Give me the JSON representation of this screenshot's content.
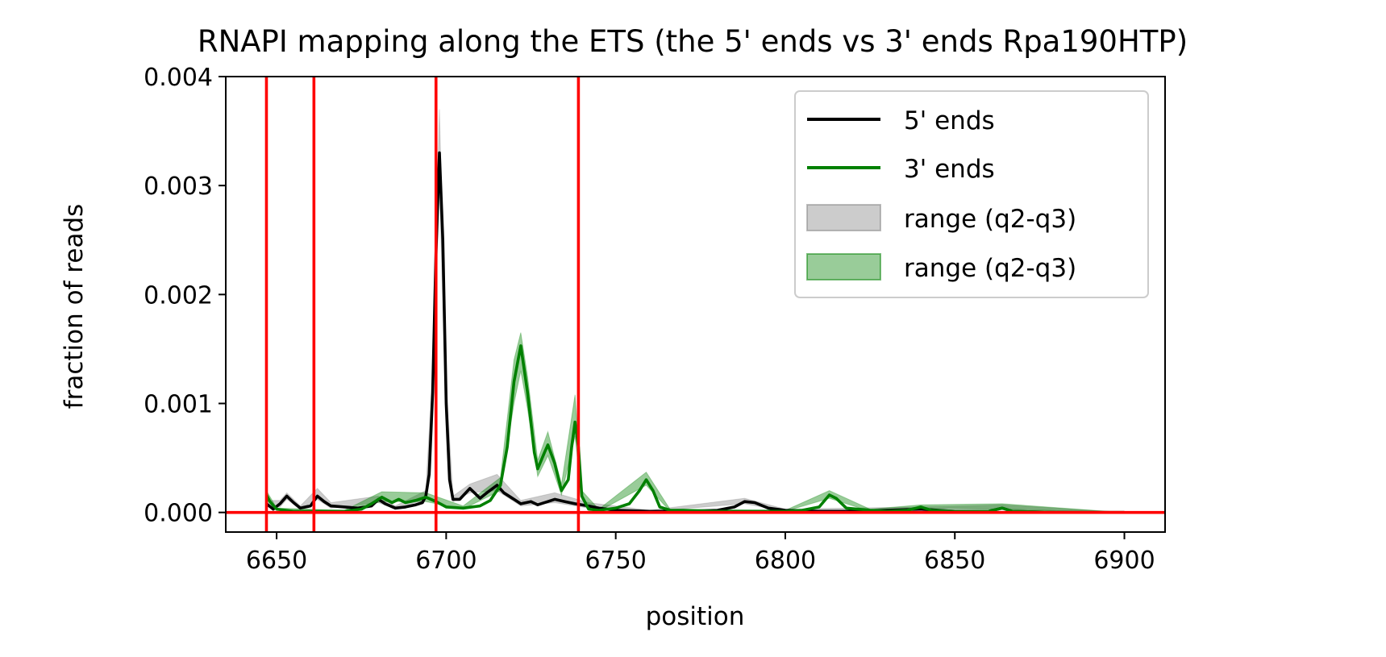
{
  "chart_data": {
    "type": "line",
    "title": "RNAPI mapping along the ETS (the 5' ends vs 3' ends Rpa190HTP)",
    "xlabel": "position",
    "ylabel": "fraction of reads",
    "xlim": [
      6635,
      6912
    ],
    "ylim": [
      -0.00018,
      0.004
    ],
    "xticks": [
      6650,
      6700,
      6750,
      6800,
      6850,
      6900
    ],
    "xtick_labels": [
      "6650",
      "6700",
      "6750",
      "6800",
      "6850",
      "6900"
    ],
    "yticks": [
      0.0,
      0.001,
      0.002,
      0.003,
      0.004
    ],
    "ytick_labels": [
      "0.000",
      "0.001",
      "0.002",
      "0.003",
      "0.004"
    ],
    "grid": false,
    "legend_position": "top-right",
    "vertical_lines": {
      "color": "#ff0000",
      "x": [
        6647,
        6661,
        6697,
        6739
      ]
    },
    "horizontal_lines": {
      "color": "#ff0000",
      "y": [
        0
      ]
    },
    "series": [
      {
        "name": "5' ends",
        "color": "#000000",
        "points": [
          [
            6647,
            8e-05
          ],
          [
            6649,
            3e-05
          ],
          [
            6651,
            8e-05
          ],
          [
            6653,
            0.00015
          ],
          [
            6655,
            9e-05
          ],
          [
            6657,
            4e-05
          ],
          [
            6660,
            6e-05
          ],
          [
            6662,
            0.00015
          ],
          [
            6664,
            0.0001
          ],
          [
            6666,
            6e-05
          ],
          [
            6670,
            5e-05
          ],
          [
            6674,
            4e-05
          ],
          [
            6678,
            6e-05
          ],
          [
            6680,
            0.00012
          ],
          [
            6682,
            8e-05
          ],
          [
            6685,
            4e-05
          ],
          [
            6688,
            5e-05
          ],
          [
            6691,
            7e-05
          ],
          [
            6693,
            9e-05
          ],
          [
            6694,
            0.00015
          ],
          [
            6695,
            0.00035
          ],
          [
            6696,
            0.0011
          ],
          [
            6697,
            0.0024
          ],
          [
            6698,
            0.0033
          ],
          [
            6699,
            0.0025
          ],
          [
            6700,
            0.001
          ],
          [
            6701,
            0.0003
          ],
          [
            6702,
            0.00012
          ],
          [
            6704,
            0.00012
          ],
          [
            6707,
            0.00022
          ],
          [
            6710,
            0.00013
          ],
          [
            6712,
            0.00018
          ],
          [
            6715,
            0.00025
          ],
          [
            6717,
            0.00018
          ],
          [
            6720,
            0.00012
          ],
          [
            6722,
            8e-05
          ],
          [
            6725,
            0.0001
          ],
          [
            6727,
            7e-05
          ],
          [
            6730,
            0.0001
          ],
          [
            6732,
            0.00012
          ],
          [
            6735,
            0.0001
          ],
          [
            6738,
            8e-05
          ],
          [
            6742,
            6e-05
          ],
          [
            6745,
            4e-05
          ],
          [
            6750,
            2e-05
          ],
          [
            6760,
            1e-05
          ],
          [
            6770,
            1e-05
          ],
          [
            6780,
            2e-05
          ],
          [
            6785,
            5e-05
          ],
          [
            6788,
            0.0001
          ],
          [
            6791,
            9e-05
          ],
          [
            6795,
            4e-05
          ],
          [
            6800,
            2e-05
          ],
          [
            6810,
            1e-05
          ],
          [
            6820,
            1e-05
          ],
          [
            6830,
            2e-05
          ],
          [
            6840,
            3e-05
          ],
          [
            6850,
            1e-05
          ],
          [
            6860,
            1e-05
          ],
          [
            6864,
            4e-05
          ],
          [
            6867,
            1e-05
          ],
          [
            6880,
            0.0
          ],
          [
            6900,
            0.0
          ]
        ],
        "range_label": "range (q2-q3)",
        "range_color": "#808080",
        "range_lower": [
          [
            6647,
            5e-05
          ],
          [
            6651,
            5e-05
          ],
          [
            6653,
            0.00012
          ],
          [
            6657,
            3e-05
          ],
          [
            6662,
            0.00012
          ],
          [
            6666,
            4e-05
          ],
          [
            6680,
            9e-05
          ],
          [
            6685,
            3e-05
          ],
          [
            6694,
            0.00012
          ],
          [
            6696,
            0.00095
          ],
          [
            6698,
            0.003
          ],
          [
            6700,
            0.00085
          ],
          [
            6702,
            0.0001
          ],
          [
            6707,
            0.00018
          ],
          [
            6715,
            0.0002
          ],
          [
            6722,
            6e-05
          ],
          [
            6732,
            9e-05
          ],
          [
            6742,
            4e-05
          ],
          [
            6760,
            1e-05
          ],
          [
            6788,
            8e-05
          ],
          [
            6800,
            1e-05
          ],
          [
            6840,
            2e-05
          ],
          [
            6864,
            3e-05
          ],
          [
            6900,
            0.0
          ]
        ],
        "range_upper": [
          [
            6647,
            0.00011
          ],
          [
            6651,
            0.00011
          ],
          [
            6653,
            0.00018
          ],
          [
            6657,
            6e-05
          ],
          [
            6662,
            0.00022
          ],
          [
            6666,
            9e-05
          ],
          [
            6680,
            0.00015
          ],
          [
            6685,
            6e-05
          ],
          [
            6694,
            0.0002
          ],
          [
            6696,
            0.0013
          ],
          [
            6698,
            0.0037
          ],
          [
            6700,
            0.0012
          ],
          [
            6702,
            0.00015
          ],
          [
            6707,
            0.00026
          ],
          [
            6715,
            0.00035
          ],
          [
            6722,
            0.00011
          ],
          [
            6732,
            0.00018
          ],
          [
            6742,
            9e-05
          ],
          [
            6760,
            2e-05
          ],
          [
            6788,
            0.00013
          ],
          [
            6800,
            3e-05
          ],
          [
            6840,
            5e-05
          ],
          [
            6864,
            7e-05
          ],
          [
            6900,
            0.0
          ]
        ]
      },
      {
        "name": "3' ends",
        "color": "#008000",
        "points": [
          [
            6647,
            0.00016
          ],
          [
            6648,
            0.0001
          ],
          [
            6650,
            3e-05
          ],
          [
            6655,
            1e-05
          ],
          [
            6660,
            1e-05
          ],
          [
            6670,
            1e-05
          ],
          [
            6675,
            3e-05
          ],
          [
            6678,
            8e-05
          ],
          [
            6681,
            0.00014
          ],
          [
            6684,
            9e-05
          ],
          [
            6686,
            0.00012
          ],
          [
            6688,
            9e-05
          ],
          [
            6691,
            0.00011
          ],
          [
            6694,
            0.00014
          ],
          [
            6697,
            0.0001
          ],
          [
            6700,
            5e-05
          ],
          [
            6705,
            4e-05
          ],
          [
            6710,
            6e-05
          ],
          [
            6713,
            0.00011
          ],
          [
            6716,
            0.00025
          ],
          [
            6718,
            0.0006
          ],
          [
            6720,
            0.0012
          ],
          [
            6722,
            0.00153
          ],
          [
            6724,
            0.0011
          ],
          [
            6726,
            0.00055
          ],
          [
            6727,
            0.0004
          ],
          [
            6729,
            0.00055
          ],
          [
            6730,
            0.00062
          ],
          [
            6732,
            0.00045
          ],
          [
            6734,
            0.0002
          ],
          [
            6736,
            0.0003
          ],
          [
            6737,
            0.0006
          ],
          [
            6738,
            0.00083
          ],
          [
            6739,
            0.0006
          ],
          [
            6740,
            0.00015
          ],
          [
            6742,
            3e-05
          ],
          [
            6745,
            2e-05
          ],
          [
            6750,
            4e-05
          ],
          [
            6754,
            8e-05
          ],
          [
            6757,
            0.0002
          ],
          [
            6759,
            0.0003
          ],
          [
            6761,
            0.0002
          ],
          [
            6763,
            5e-05
          ],
          [
            6766,
            2e-05
          ],
          [
            6770,
            2e-05
          ],
          [
            6780,
            1e-05
          ],
          [
            6790,
            1e-05
          ],
          [
            6800,
            1e-05
          ],
          [
            6805,
            2e-05
          ],
          [
            6810,
            5e-05
          ],
          [
            6813,
            0.00016
          ],
          [
            6815,
            0.00013
          ],
          [
            6818,
            4e-05
          ],
          [
            6825,
            2e-05
          ],
          [
            6830,
            1e-05
          ],
          [
            6836,
            2e-05
          ],
          [
            6840,
            5e-05
          ],
          [
            6843,
            2e-05
          ],
          [
            6850,
            1e-05
          ],
          [
            6860,
            1e-05
          ],
          [
            6864,
            4e-05
          ],
          [
            6867,
            1e-05
          ],
          [
            6880,
            0.0
          ],
          [
            6900,
            0.0
          ]
        ],
        "range_label": "range (q2-q3)",
        "range_color": "#008000",
        "range_lower": [
          [
            6647,
            0.00012
          ],
          [
            6650,
            2e-05
          ],
          [
            6670,
            1e-05
          ],
          [
            6681,
            0.0001
          ],
          [
            6694,
            0.0001
          ],
          [
            6705,
            3e-05
          ],
          [
            6716,
            0.0002
          ],
          [
            6720,
            0.001
          ],
          [
            6722,
            0.0013
          ],
          [
            6724,
            0.00095
          ],
          [
            6727,
            0.00033
          ],
          [
            6730,
            0.00052
          ],
          [
            6734,
            0.00016
          ],
          [
            6738,
            0.0007
          ],
          [
            6740,
            0.00012
          ],
          [
            6745,
            1e-05
          ],
          [
            6759,
            0.00025
          ],
          [
            6766,
            1e-05
          ],
          [
            6800,
            1e-05
          ],
          [
            6813,
            0.00013
          ],
          [
            6825,
            1e-05
          ],
          [
            6840,
            4e-05
          ],
          [
            6864,
            3e-05
          ],
          [
            6900,
            0.0
          ]
        ],
        "range_upper": [
          [
            6647,
            0.0002
          ],
          [
            6650,
            4e-05
          ],
          [
            6670,
            2e-05
          ],
          [
            6681,
            0.00019
          ],
          [
            6694,
            0.00018
          ],
          [
            6705,
            6e-05
          ],
          [
            6716,
            0.00032
          ],
          [
            6720,
            0.0014
          ],
          [
            6722,
            0.00165
          ],
          [
            6724,
            0.00125
          ],
          [
            6727,
            0.00048
          ],
          [
            6730,
            0.00074
          ],
          [
            6734,
            0.00026
          ],
          [
            6738,
            0.00108
          ],
          [
            6740,
            0.0002
          ],
          [
            6745,
            3e-05
          ],
          [
            6759,
            0.00037
          ],
          [
            6766,
            3e-05
          ],
          [
            6800,
            2e-05
          ],
          [
            6813,
            0.0002
          ],
          [
            6825,
            3e-05
          ],
          [
            6840,
            7e-05
          ],
          [
            6864,
            8e-05
          ],
          [
            6900,
            0.0
          ]
        ]
      }
    ],
    "legend": [
      {
        "label": "5' ends",
        "kind": "line",
        "color": "#000000"
      },
      {
        "label": "3' ends",
        "kind": "line",
        "color": "#008000"
      },
      {
        "label": "range (q2-q3)",
        "kind": "patch",
        "color": "#808080"
      },
      {
        "label": "range (q2-q3)",
        "kind": "patch",
        "color": "#008000"
      }
    ]
  }
}
